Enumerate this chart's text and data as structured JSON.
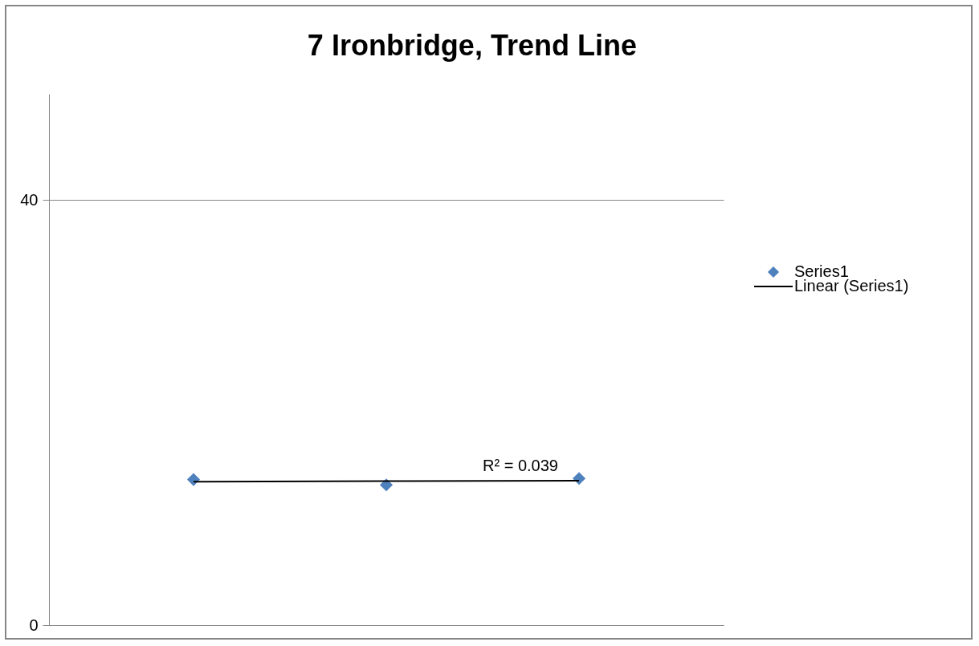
{
  "chart_data": {
    "type": "scatter",
    "title": "7 Ironbridge, Trend Line",
    "categories": [
      null,
      null,
      null
    ],
    "series": [
      {
        "name": "Series1",
        "color": "#4f81bd",
        "marker": "diamond",
        "values": [
          13.7,
          13.2,
          13.8
        ]
      },
      {
        "name": "Linear (Series1)",
        "type": "line",
        "color": "#000000",
        "line_style": "solid",
        "marker": "none",
        "values": [
          13.5,
          13.55,
          13.6
        ]
      }
    ],
    "annotations": [
      "R² = 0.039"
    ],
    "ylim": [
      0,
      50
    ],
    "yticks": [
      0,
      40
    ],
    "grid": "y",
    "legend": "right",
    "tick_labels": "y"
  }
}
